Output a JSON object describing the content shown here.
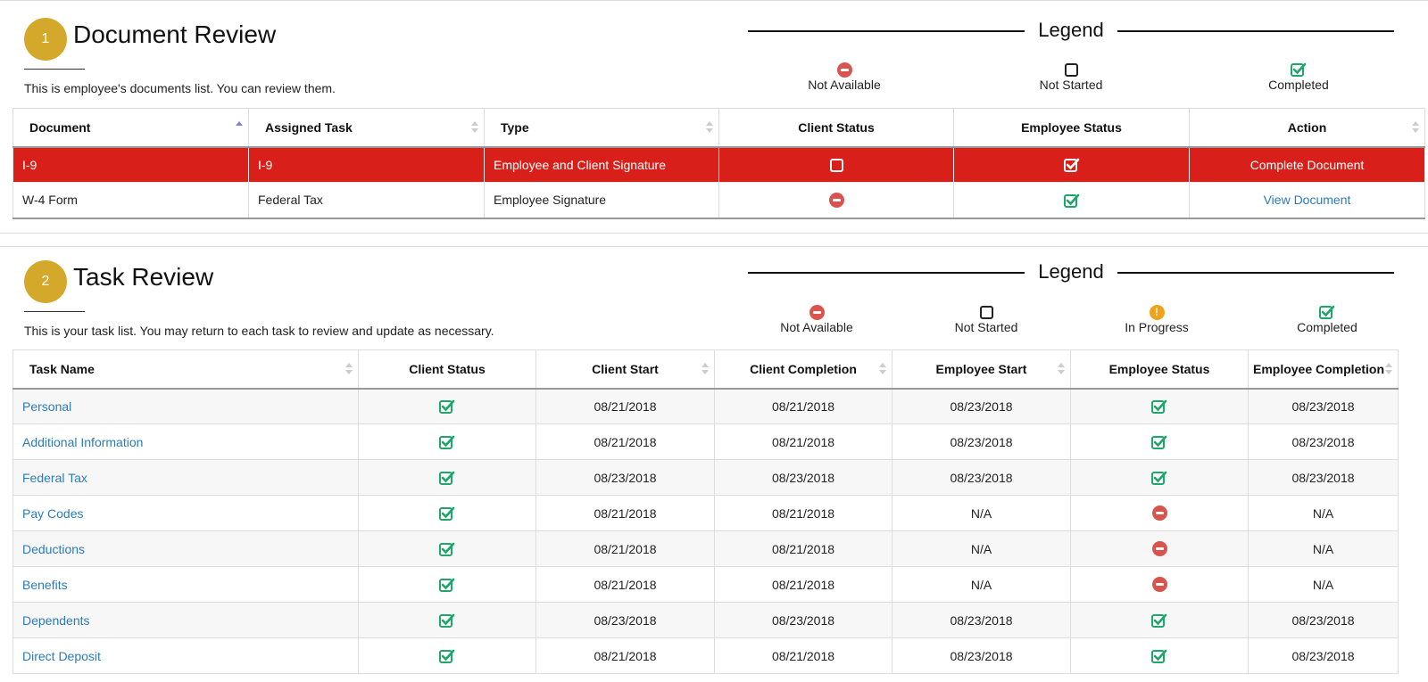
{
  "doc_section": {
    "number": "1",
    "title": "Document Review",
    "description": "This is employee's documents list. You can review them.",
    "legend": {
      "title": "Legend",
      "items": [
        "Not Available",
        "Not Started",
        "Completed"
      ]
    },
    "columns": [
      "Document",
      "Assigned Task",
      "Type",
      "Client Status",
      "Employee Status",
      "Action"
    ],
    "rows": [
      {
        "document": "I-9",
        "task": "I-9",
        "type": "Employee and Client Signature",
        "client_status": "not-started",
        "employee_status": "completed",
        "action": "Complete Document",
        "active": true
      },
      {
        "document": "W-4 Form",
        "task": "Federal Tax",
        "type": "Employee Signature",
        "client_status": "not-available",
        "employee_status": "completed",
        "action": "View Document",
        "active": false
      }
    ]
  },
  "task_section": {
    "number": "2",
    "title": "Task Review",
    "description": "This is your task list. You may return to each task to review and update as necessary.",
    "legend": {
      "title": "Legend",
      "items": [
        "Not Available",
        "Not Started",
        "In Progress",
        "Completed"
      ]
    },
    "columns": [
      "Task Name",
      "Client Status",
      "Client Start",
      "Client Completion",
      "Employee Start",
      "Employee Status",
      "Employee Completion"
    ],
    "rows": [
      {
        "name": "Personal",
        "client_status": "completed",
        "client_start": "08/21/2018",
        "client_completion": "08/21/2018",
        "employee_start": "08/23/2018",
        "employee_status": "completed",
        "employee_completion": "08/23/2018"
      },
      {
        "name": "Additional Information",
        "client_status": "completed",
        "client_start": "08/21/2018",
        "client_completion": "08/21/2018",
        "employee_start": "08/23/2018",
        "employee_status": "completed",
        "employee_completion": "08/23/2018"
      },
      {
        "name": "Federal Tax",
        "client_status": "completed",
        "client_start": "08/23/2018",
        "client_completion": "08/23/2018",
        "employee_start": "08/23/2018",
        "employee_status": "completed",
        "employee_completion": "08/23/2018"
      },
      {
        "name": "Pay Codes",
        "client_status": "completed",
        "client_start": "08/21/2018",
        "client_completion": "08/21/2018",
        "employee_start": "N/A",
        "employee_status": "not-available",
        "employee_completion": "N/A"
      },
      {
        "name": "Deductions",
        "client_status": "completed",
        "client_start": "08/21/2018",
        "client_completion": "08/21/2018",
        "employee_start": "N/A",
        "employee_status": "not-available",
        "employee_completion": "N/A"
      },
      {
        "name": "Benefits",
        "client_status": "completed",
        "client_start": "08/21/2018",
        "client_completion": "08/21/2018",
        "employee_start": "N/A",
        "employee_status": "not-available",
        "employee_completion": "N/A"
      },
      {
        "name": "Dependents",
        "client_status": "completed",
        "client_start": "08/23/2018",
        "client_completion": "08/23/2018",
        "employee_start": "08/23/2018",
        "employee_status": "completed",
        "employee_completion": "08/23/2018"
      },
      {
        "name": "Direct Deposit",
        "client_status": "completed",
        "client_start": "08/21/2018",
        "client_completion": "08/21/2018",
        "employee_start": "08/23/2018",
        "employee_status": "completed",
        "employee_completion": "08/23/2018"
      }
    ]
  },
  "colors": {
    "badge": "#d4a82a",
    "active_row": "#d91f1a",
    "link": "#2b7bb9",
    "completed": "#1fa66b",
    "not_available": "#d9534f",
    "in_progress": "#f0a21b"
  },
  "icons": {
    "not-available": "minus-circle-icon",
    "not-started": "empty-checkbox-icon",
    "in-progress": "exclamation-circle-icon",
    "completed": "check-square-icon"
  }
}
